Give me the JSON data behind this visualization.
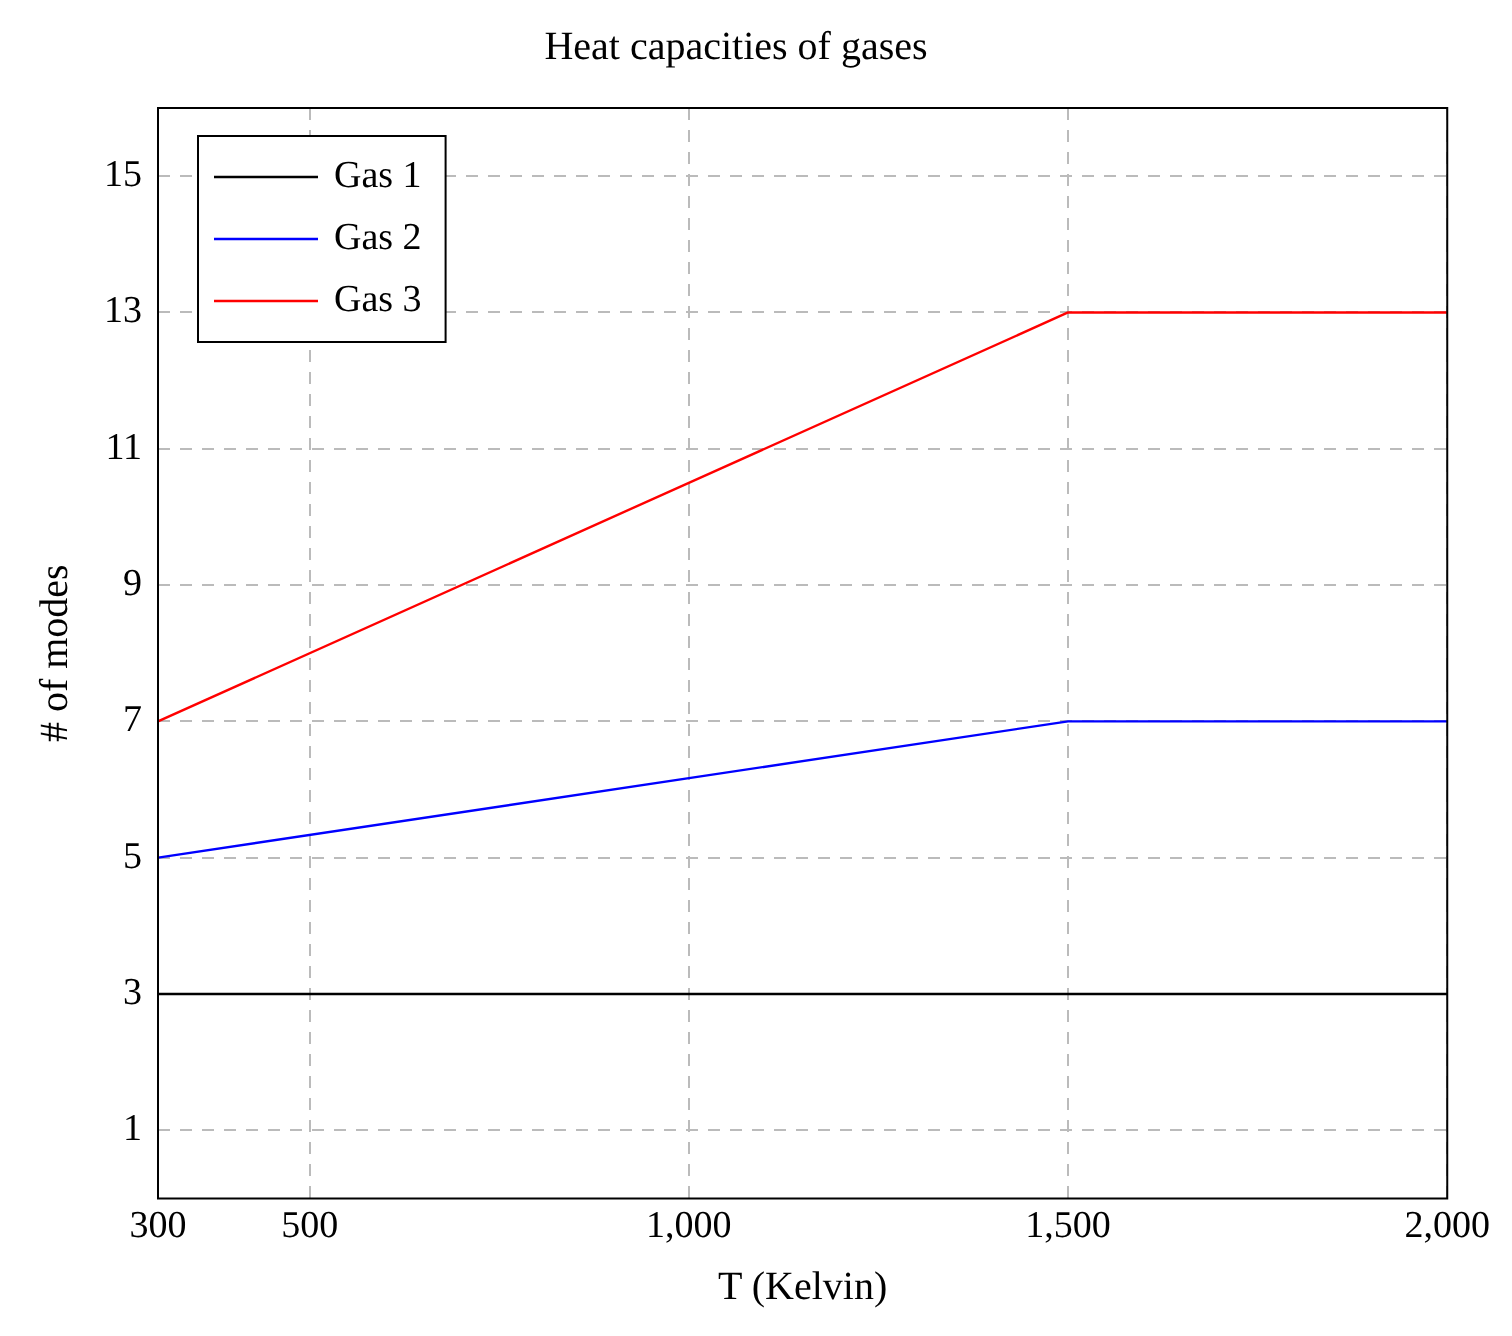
{
  "chart_data": {
    "type": "line",
    "title": "Heat capacities of gases",
    "xlabel": "T (Kelvin)",
    "ylabel": "# of modes",
    "x": [
      300,
      1500,
      2000
    ],
    "series": [
      {
        "name": "Gas 1",
        "color": "#000000",
        "values": [
          3,
          3,
          3
        ]
      },
      {
        "name": "Gas 2",
        "color": "#0000ff",
        "values": [
          5,
          7,
          7
        ]
      },
      {
        "name": "Gas 3",
        "color": "#ff0000",
        "values": [
          7,
          13,
          13
        ]
      }
    ],
    "xlim": [
      300,
      2000
    ],
    "xticks": [
      300,
      500,
      {
        "value": 1000,
        "label": "1,000"
      },
      {
        "value": 1500,
        "label": "1,500"
      },
      {
        "value": 2000,
        "label": "2,000"
      }
    ],
    "ylim": [
      0,
      16
    ],
    "yticks": [
      1,
      3,
      5,
      7,
      9,
      11,
      13,
      15
    ],
    "grid": true,
    "legend": "top left",
    "marker": "none",
    "line_style": "solid"
  }
}
